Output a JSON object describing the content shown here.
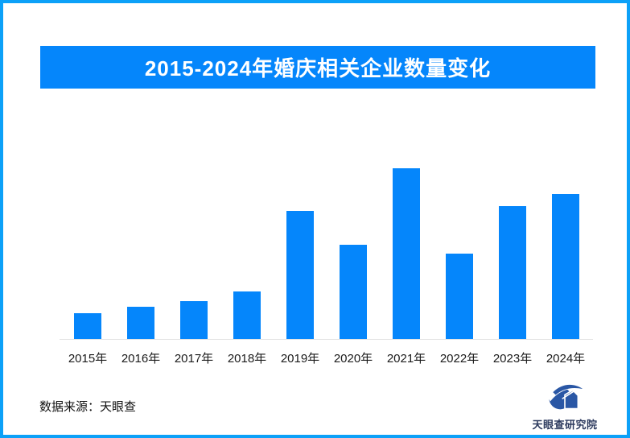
{
  "header": {
    "title": "2015-2024年婚庆相关企业数量变化",
    "background_color": "#0586fb",
    "text_color": "#ffffff"
  },
  "frame": {
    "border_color": "#0ca1f8",
    "background_color": "#ffffff"
  },
  "chart_data": {
    "type": "bar",
    "title": "2015-2024年婚庆相关企业数量变化",
    "categories": [
      "2015年",
      "2016年",
      "2017年",
      "2018年",
      "2019年",
      "2020年",
      "2021年",
      "2022年",
      "2023年",
      "2024年"
    ],
    "values": [
      15,
      19,
      22,
      28,
      75,
      55,
      100,
      50,
      78,
      85
    ],
    "value_scale_note": "no numeric y-axis, gridlines or data labels visible; values estimated relative to tallest bar (2021 = 100)",
    "bar_color": "#0586fb",
    "xlabel": "",
    "ylabel": "",
    "ylim": [
      0,
      100
    ],
    "grid": false,
    "legend": "none",
    "axis_line_color": "#e2e2e2"
  },
  "footer": {
    "source": "数据来源：天眼查"
  },
  "logo": {
    "text": "天眼查研究院",
    "icon_color": "#2a57a5",
    "text_color": "#2c3a5e"
  }
}
